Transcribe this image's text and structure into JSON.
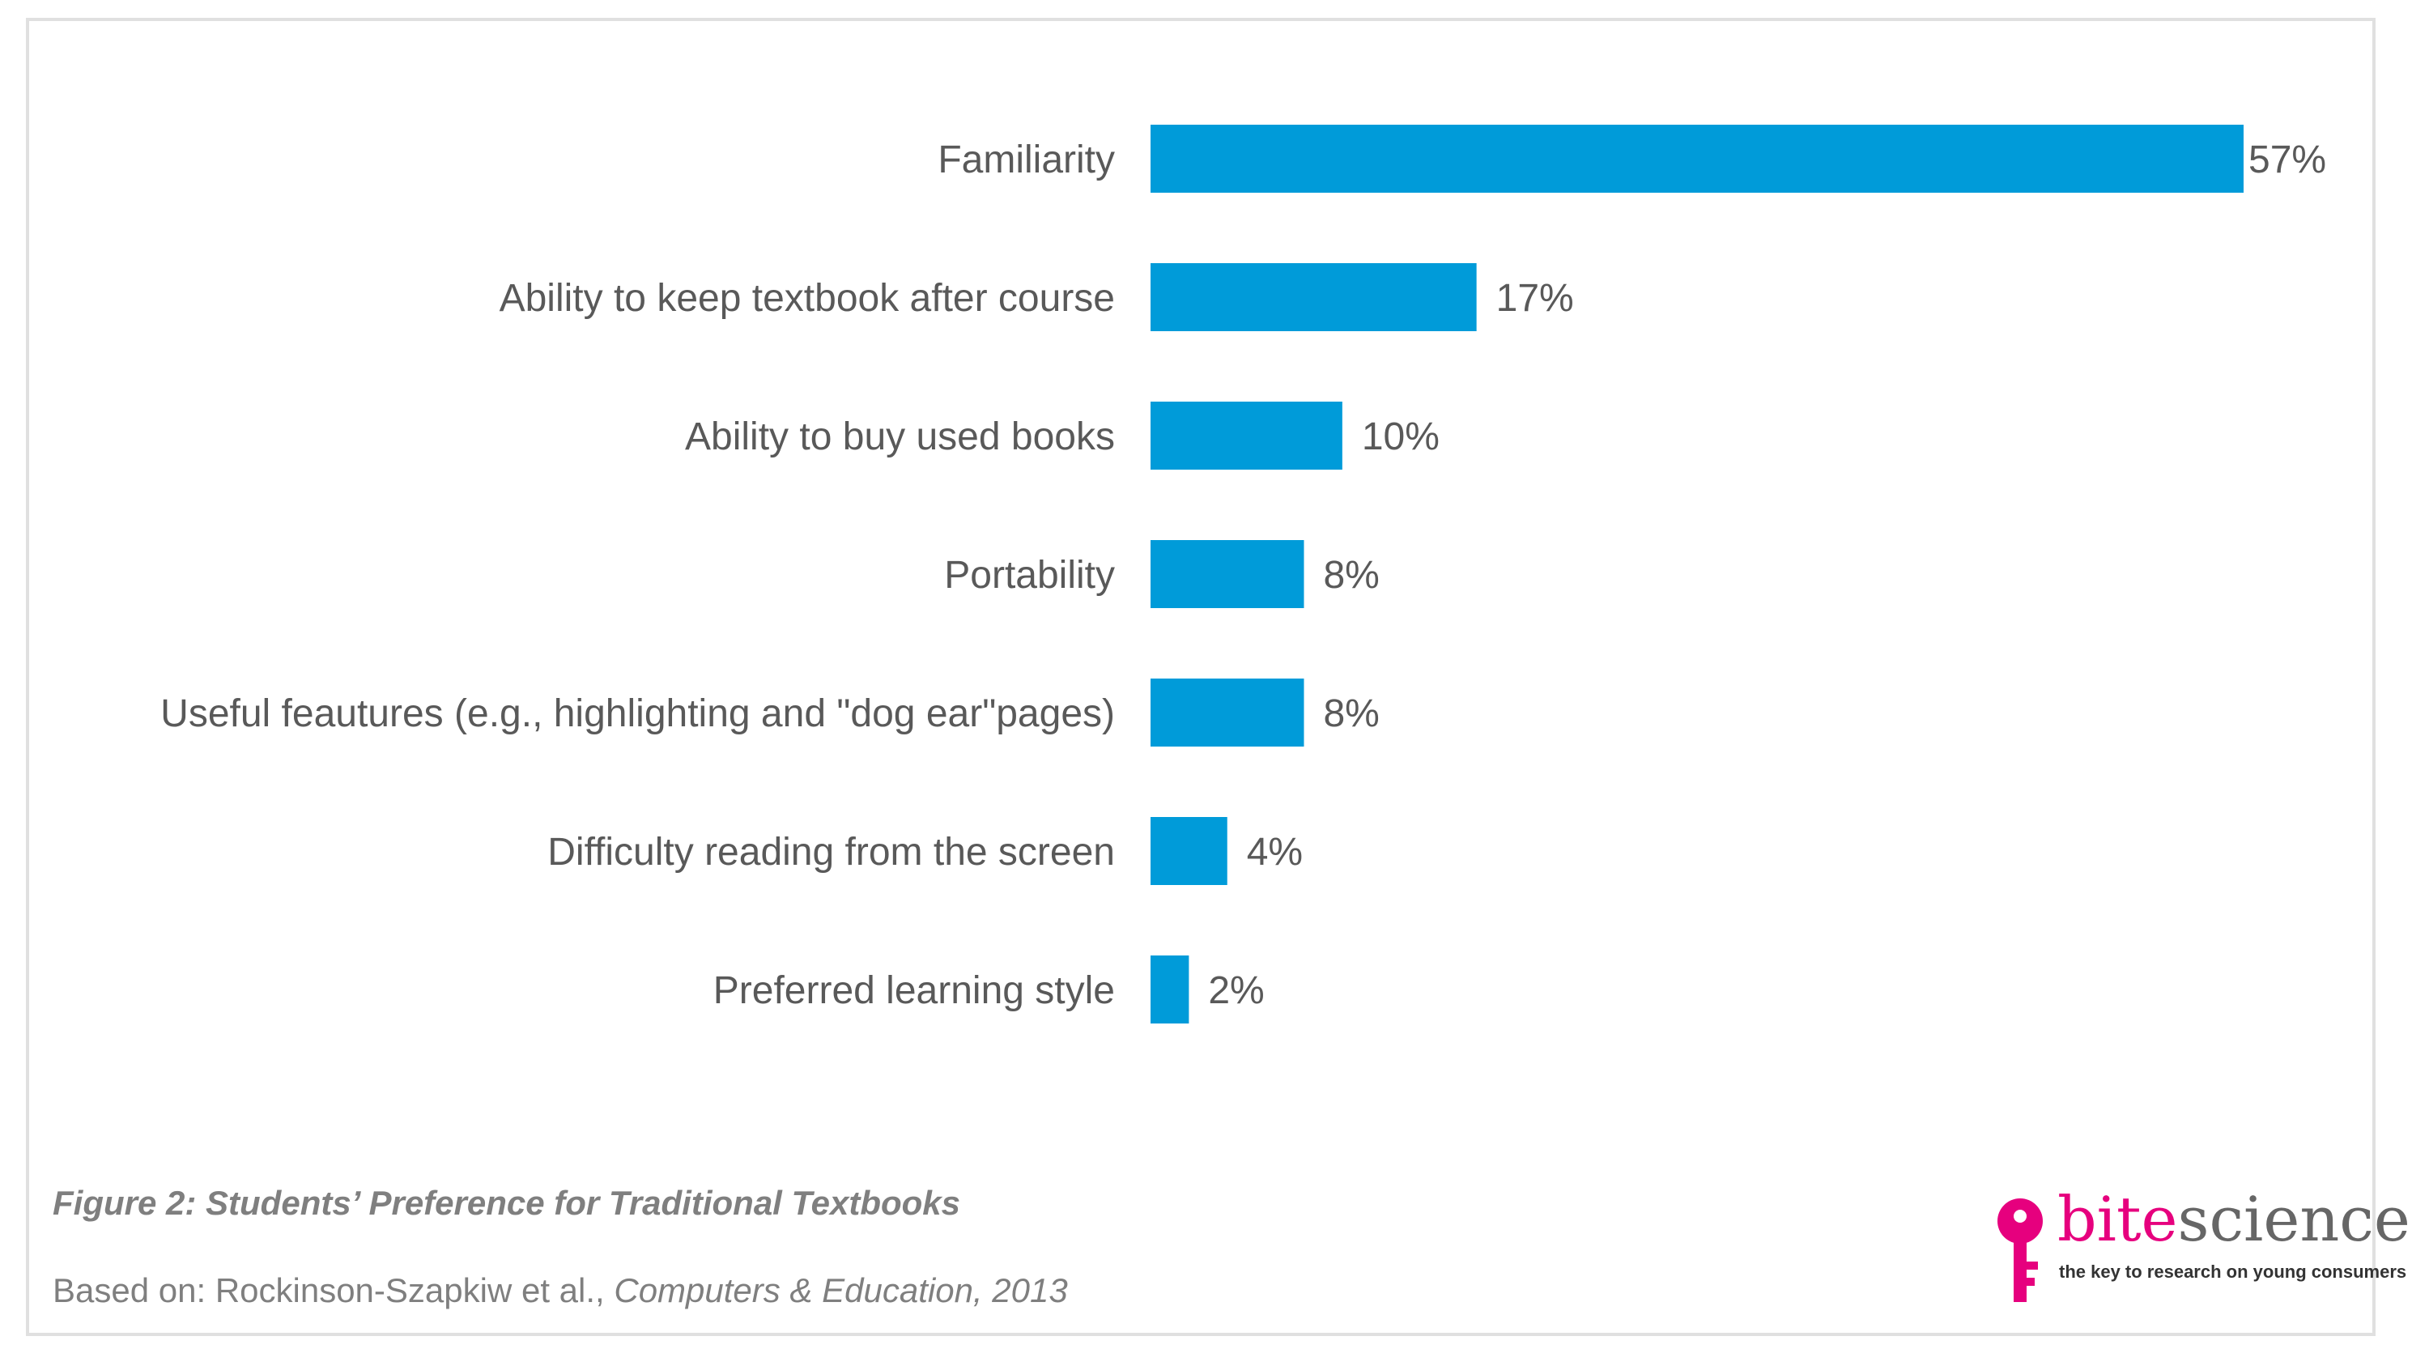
{
  "chart_data": {
    "type": "bar",
    "orientation": "horizontal",
    "categories": [
      "Familiarity",
      "Ability to keep textbook after course",
      "Ability to buy used books",
      "Portability",
      "Useful feautures (e.g., highlighting and \"dog ear\"pages)",
      "Difficulty reading from the screen",
      "Preferred learning style"
    ],
    "values": [
      57,
      17,
      10,
      8,
      8,
      4,
      2
    ],
    "value_labels": [
      "57%",
      "17%",
      "10%",
      "8%",
      "8%",
      "4%",
      "2%"
    ],
    "unit": "%",
    "bar_color": "#009bd9",
    "grid": false,
    "legend": "none"
  },
  "caption": "Figure 2: Students’ Preference for Traditional Textbooks",
  "source": {
    "prefix": "Based on: Rockinson-Szapkiw et al., ",
    "journal": "Computers & Education, 2013"
  },
  "logo": {
    "word_part1": "bite",
    "word_part2": "science",
    "tagline": "the key to research on young consumers",
    "brand_color": "#e6007e"
  }
}
